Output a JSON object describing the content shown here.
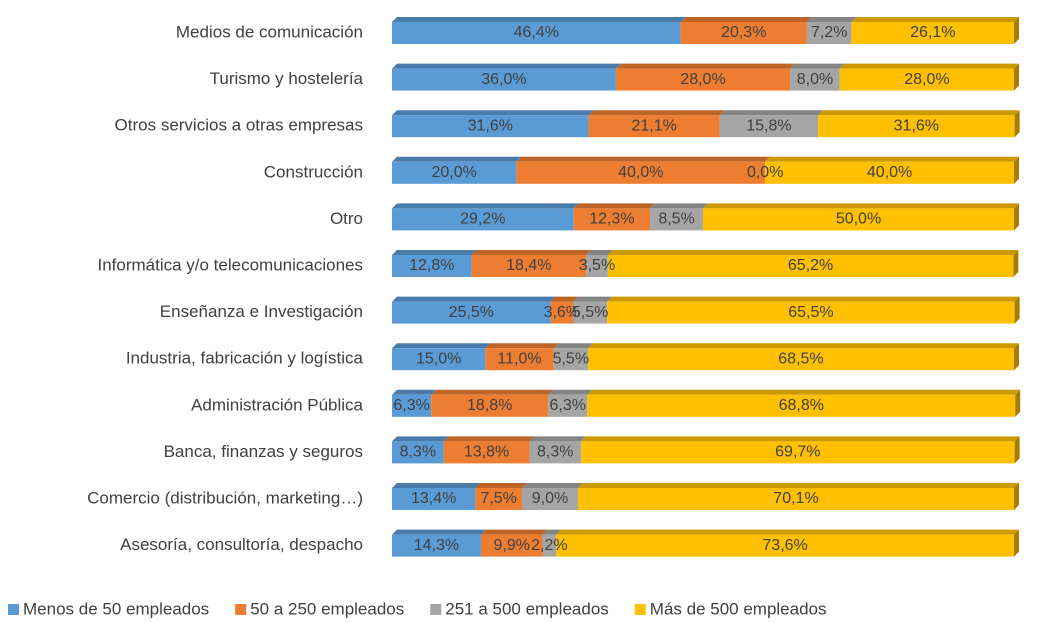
{
  "chart_data": {
    "type": "stacked_bar_horizontal",
    "categories": [
      "Medios de comunicación",
      "Turismo y hostelería",
      "Otros servicios a otras empresas",
      "Construcción",
      "Otro",
      "Informática y/o telecomunicaciones",
      "Enseñanza e Investigación",
      "Industria, fabricación y logística",
      "Administración Pública",
      "Banca, finanzas y seguros",
      "Comercio (distribución, marketing…)",
      "Asesoría, consultoría, despacho"
    ],
    "xlim": [
      0,
      100
    ],
    "legend": "bottom",
    "series": [
      {
        "name": "Menos de 50 empleados",
        "color": "#5b9bd5",
        "values": [
          46.4,
          36.0,
          31.6,
          20.0,
          29.2,
          12.8,
          25.5,
          15.0,
          6.3,
          8.3,
          13.4,
          14.3
        ],
        "value_labels": [
          "46,4%",
          "36,0%",
          "31,6%",
          "20,0%",
          "29,2%",
          "12,8%",
          "25,5%",
          "15,0%",
          "6,3%",
          "8,3%",
          "13,4%",
          "14,3%"
        ]
      },
      {
        "name": "50 a 250 empleados",
        "color": "#ed7d31",
        "values": [
          20.3,
          28.0,
          21.1,
          40.0,
          12.3,
          18.4,
          3.6,
          11.0,
          18.8,
          13.8,
          7.5,
          9.9
        ],
        "value_labels": [
          "20,3%",
          "28,0%",
          "21,1%",
          "40,0%",
          "12,3%",
          "18,4%",
          "3,6%",
          "11,0%",
          "18,8%",
          "13,8%",
          "7,5%",
          "9,9%"
        ]
      },
      {
        "name": "251 a 500 empleados",
        "color": "#a5a5a5",
        "values": [
          7.2,
          8.0,
          15.8,
          0.0,
          8.5,
          3.5,
          5.5,
          5.5,
          6.3,
          8.3,
          9.0,
          2.2
        ],
        "value_labels": [
          "7,2%",
          "8,0%",
          "15,8%",
          "0,0%",
          "8,5%",
          "3,5%",
          "5,5%",
          "5,5%",
          "6,3%",
          "8,3%",
          "9,0%",
          "2,2%"
        ]
      },
      {
        "name": "Más de 500 empleados",
        "color": "#ffc000",
        "values": [
          26.1,
          28.0,
          31.6,
          40.0,
          50.0,
          65.2,
          65.5,
          68.5,
          68.8,
          69.7,
          70.1,
          73.6
        ],
        "value_labels": [
          "26,1%",
          "28,0%",
          "31,6%",
          "40,0%",
          "50,0%",
          "65,2%",
          "65,5%",
          "68,5%",
          "68,8%",
          "69,7%",
          "70,1%",
          "73,6%"
        ]
      }
    ]
  }
}
